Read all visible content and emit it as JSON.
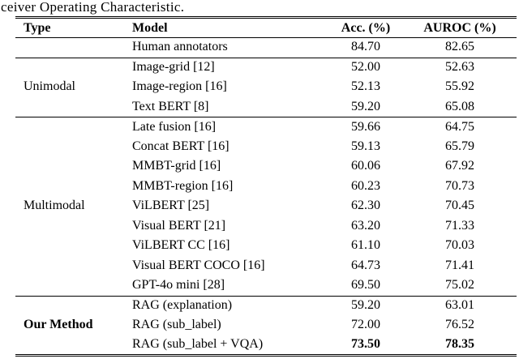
{
  "caption": "ceiver Operating Characteristic.",
  "colors": {
    "text": "#000000",
    "background": "#ffffff",
    "rule": "#000000"
  },
  "table": {
    "headers": [
      "Type",
      "Model",
      "Acc. (%)",
      "AUROC (%)"
    ],
    "groups": [
      {
        "type_label": "",
        "type_bold": false,
        "rows": [
          {
            "model": "Human annotators",
            "acc": "84.70",
            "auroc": "82.65",
            "bold_values": false
          }
        ]
      },
      {
        "type_label": "Unimodal",
        "type_bold": false,
        "rows": [
          {
            "model": "Image-grid [12]",
            "acc": "52.00",
            "auroc": "52.63",
            "bold_values": false
          },
          {
            "model": "Image-region [16]",
            "acc": "52.13",
            "auroc": "55.92",
            "bold_values": false
          },
          {
            "model": "Text BERT [8]",
            "acc": "59.20",
            "auroc": "65.08",
            "bold_values": false
          }
        ]
      },
      {
        "type_label": "Multimodal",
        "type_bold": false,
        "rows": [
          {
            "model": "Late fusion [16]",
            "acc": "59.66",
            "auroc": "64.75",
            "bold_values": false
          },
          {
            "model": "Concat BERT [16]",
            "acc": "59.13",
            "auroc": "65.79",
            "bold_values": false
          },
          {
            "model": "MMBT-grid [16]",
            "acc": "60.06",
            "auroc": "67.92",
            "bold_values": false
          },
          {
            "model": "MMBT-region [16]",
            "acc": "60.23",
            "auroc": "70.73",
            "bold_values": false
          },
          {
            "model": "ViLBERT [25]",
            "acc": "62.30",
            "auroc": "70.45",
            "bold_values": false
          },
          {
            "model": "Visual BERT [21]",
            "acc": "63.20",
            "auroc": "71.33",
            "bold_values": false
          },
          {
            "model": "ViLBERT CC [16]",
            "acc": "61.10",
            "auroc": "70.03",
            "bold_values": false
          },
          {
            "model": "Visual BERT COCO [16]",
            "acc": "64.73",
            "auroc": "71.41",
            "bold_values": false
          },
          {
            "model": "GPT-4o mini [28]",
            "acc": "69.50",
            "auroc": "75.02",
            "bold_values": false
          }
        ]
      },
      {
        "type_label": "Our Method",
        "type_bold": true,
        "rows": [
          {
            "model": "RAG (explanation)",
            "acc": "59.20",
            "auroc": "63.01",
            "bold_values": false
          },
          {
            "model": "RAG (sub_label)",
            "acc": "72.00",
            "auroc": "76.52",
            "bold_values": false
          },
          {
            "model": "RAG (sub_label + VQA)",
            "acc": "73.50",
            "auroc": "78.35",
            "bold_values": true
          }
        ]
      }
    ]
  }
}
